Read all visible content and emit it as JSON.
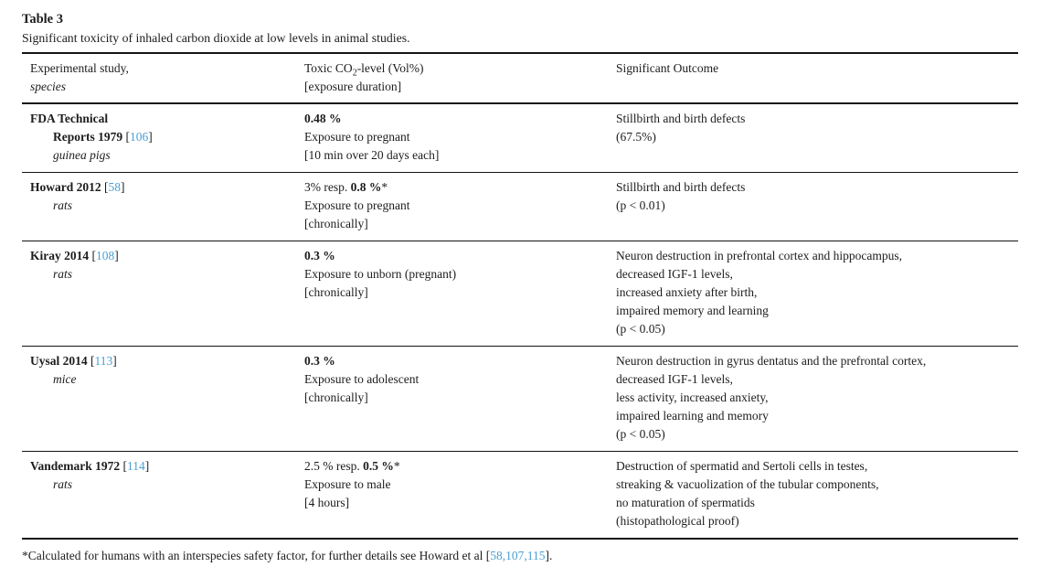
{
  "accent_color": "#4aa0d2",
  "header": {
    "table_label": "Table 3",
    "caption": "Significant toxicity of inhaled carbon dioxide at low levels in animal studies."
  },
  "columns": {
    "study": {
      "line1": "Experimental study,",
      "line2": "species"
    },
    "dose": {
      "co2_prefix": "Toxic CO",
      "co2_sub": "2",
      "co2_suffix": "-level (Vol%)",
      "line2": "[exposure duration]"
    },
    "outcome": {
      "line1": "Significant Outcome"
    }
  },
  "rows": [
    {
      "study": {
        "name_lines": [
          "FDA Technical",
          "Reports 1979"
        ],
        "citation": "106",
        "species": "guinea pigs"
      },
      "dose": {
        "prefix": "",
        "bold": "0.48 %",
        "asterisk": false,
        "lines": [
          "Exposure to pregnant",
          "[10 min over 20 days each]"
        ]
      },
      "outcome": [
        "Stillbirth and birth defects",
        "(67.5%)"
      ]
    },
    {
      "study": {
        "name_lines": [
          "Howard 2012"
        ],
        "citation": "58",
        "species": "rats"
      },
      "dose": {
        "prefix": "3% resp. ",
        "bold": "0.8 %",
        "asterisk": true,
        "lines": [
          "Exposure to pregnant",
          "[chronically]"
        ]
      },
      "outcome": [
        "Stillbirth and birth defects",
        "(p < 0.01)"
      ]
    },
    {
      "study": {
        "name_lines": [
          "Kiray 2014"
        ],
        "citation": "108",
        "species": "rats"
      },
      "dose": {
        "prefix": "",
        "bold": "0.3 %",
        "asterisk": false,
        "lines": [
          "Exposure to unborn (pregnant)",
          "[chronically]"
        ]
      },
      "outcome": [
        "Neuron destruction in prefrontal cortex and hippocampus,",
        "decreased IGF-1 levels,",
        "increased anxiety after birth,",
        "impaired memory and learning",
        "(p < 0.05)"
      ]
    },
    {
      "study": {
        "name_lines": [
          "Uysal 2014"
        ],
        "citation": "113",
        "species": "mice"
      },
      "dose": {
        "prefix": "",
        "bold": "0.3 %",
        "asterisk": false,
        "lines": [
          "Exposure to adolescent",
          "[chronically]"
        ]
      },
      "outcome": [
        "Neuron destruction in gyrus dentatus and the prefrontal cortex,",
        "decreased IGF-1 levels,",
        "less activity, increased anxiety,",
        "impaired learning and memory",
        "(p < 0.05)"
      ]
    },
    {
      "study": {
        "name_lines": [
          "Vandemark 1972"
        ],
        "citation": "114",
        "species": "rats"
      },
      "dose": {
        "prefix": "2.5 % resp. ",
        "bold": "0.5 %",
        "asterisk": true,
        "lines": [
          "Exposure to male",
          "[4 hours]"
        ]
      },
      "outcome": [
        "Destruction of spermatid and Sertoli cells in testes,",
        "streaking & vacuolization of the tubular components,",
        "no maturation of spermatids",
        "(histopathological proof)"
      ]
    }
  ],
  "footnote": {
    "marker": "*",
    "text": "Calculated for humans with an interspecies safety factor, for further details see Howard et al ",
    "open_bracket": "[",
    "citations": [
      "58",
      "107",
      "115"
    ],
    "separator": ",",
    "close_bracket": "]",
    "suffix": "."
  }
}
